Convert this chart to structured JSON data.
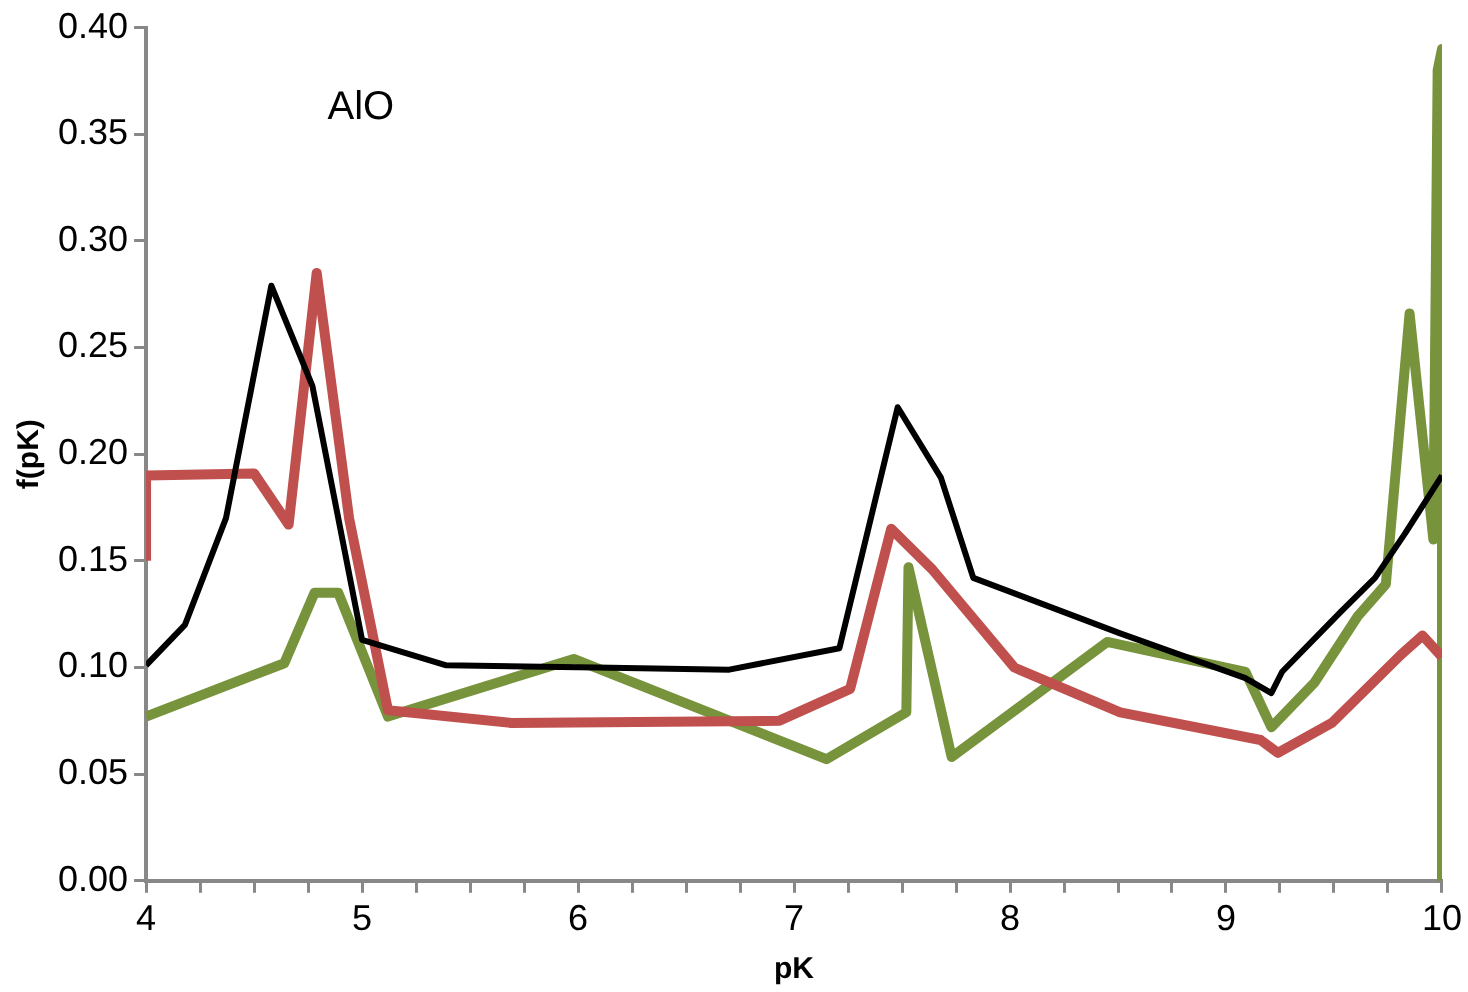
{
  "chart_data": {
    "type": "line",
    "xlabel": "pK",
    "ylabel": "f(pK)",
    "annotations": [
      "AlO"
    ],
    "xlim": [
      4,
      10
    ],
    "ylim": [
      0,
      0.4
    ],
    "xticks": [
      4,
      {
        "value": 4.25,
        "label": null
      },
      {
        "value": 4.5,
        "label": null
      },
      {
        "value": 4.75,
        "label": null
      },
      5,
      {
        "value": 5.25,
        "label": null
      },
      {
        "value": 5.5,
        "label": null
      },
      {
        "value": 5.75,
        "label": null
      },
      6,
      {
        "value": 6.25,
        "label": null
      },
      {
        "value": 6.5,
        "label": null
      },
      {
        "value": 6.75,
        "label": null
      },
      7,
      {
        "value": 7.25,
        "label": null
      },
      {
        "value": 7.5,
        "label": null
      },
      {
        "value": 7.75,
        "label": null
      },
      8,
      {
        "value": 8.25,
        "label": null
      },
      {
        "value": 8.5,
        "label": null
      },
      {
        "value": 8.75,
        "label": null
      },
      9,
      {
        "value": 9.25,
        "label": null
      },
      {
        "value": 9.5,
        "label": null
      },
      {
        "value": 9.75,
        "label": null
      },
      10
    ],
    "yticks": [
      {
        "value": 0,
        "label": "0.00"
      },
      {
        "value": 0.05,
        "label": "0.05"
      },
      {
        "value": 0.1,
        "label": "0.10"
      },
      {
        "value": 0.15,
        "label": "0.15"
      },
      {
        "value": 0.2,
        "label": "0.20"
      },
      {
        "value": 0.25,
        "label": "0.25"
      },
      {
        "value": 0.3,
        "label": "0.30"
      },
      {
        "value": 0.35,
        "label": "0.35"
      },
      {
        "value": 0.4,
        "label": "0.40"
      }
    ],
    "grid": false,
    "legend": false,
    "marker": "none",
    "line_style": "solid",
    "series": [
      {
        "color": "#000000",
        "x": [
          4,
          4.18,
          4.37,
          4.58,
          4.77,
          5,
          5.39,
          6.08,
          6.7,
          7.21,
          7.48,
          7.68,
          7.83,
          8.51,
          9.09,
          9.21,
          9.26,
          9.53,
          9.69,
          9.83,
          10
        ],
        "values": [
          0.101,
          0.12,
          0.17,
          0.279,
          0.232,
          0.113,
          0.101,
          0.1,
          0.099,
          0.109,
          0.222,
          0.189,
          0.142,
          0.116,
          0.095,
          0.088,
          0.098,
          0.126,
          0.142,
          0.163,
          0.19
        ]
      },
      {
        "color": "#c0504d",
        "x": [
          4,
          4,
          4.5,
          4.66,
          4.79,
          4.94,
          5.12,
          5.69,
          6.93,
          7.26,
          7.45,
          7.64,
          8.02,
          8.51,
          9.16,
          9.24,
          9.49,
          9.66,
          9.81,
          9.91,
          10
        ],
        "values": [
          0.15,
          0.19,
          0.191,
          0.167,
          0.285,
          0.17,
          0.08,
          0.074,
          0.075,
          0.09,
          0.165,
          0.146,
          0.1,
          0.079,
          0.066,
          0.06,
          0.074,
          0.091,
          0.106,
          0.115,
          0.105
        ]
      },
      {
        "color": "#77933c",
        "x": [
          4,
          4.64,
          4.78,
          4.89,
          5.12,
          5.98,
          7.15,
          7.52,
          7.53,
          7.73,
          8.45,
          9.09,
          9.21,
          9.41,
          9.61,
          9.74,
          9.85,
          9.96,
          9.98,
          10,
          10
        ],
        "values": [
          0.077,
          0.102,
          0.135,
          0.135,
          0.077,
          0.104,
          0.057,
          0.079,
          0.147,
          0.058,
          0.112,
          0.098,
          0.072,
          0.093,
          0.124,
          0.139,
          0.266,
          0.16,
          0.38,
          0.39,
          0
        ]
      }
    ]
  }
}
